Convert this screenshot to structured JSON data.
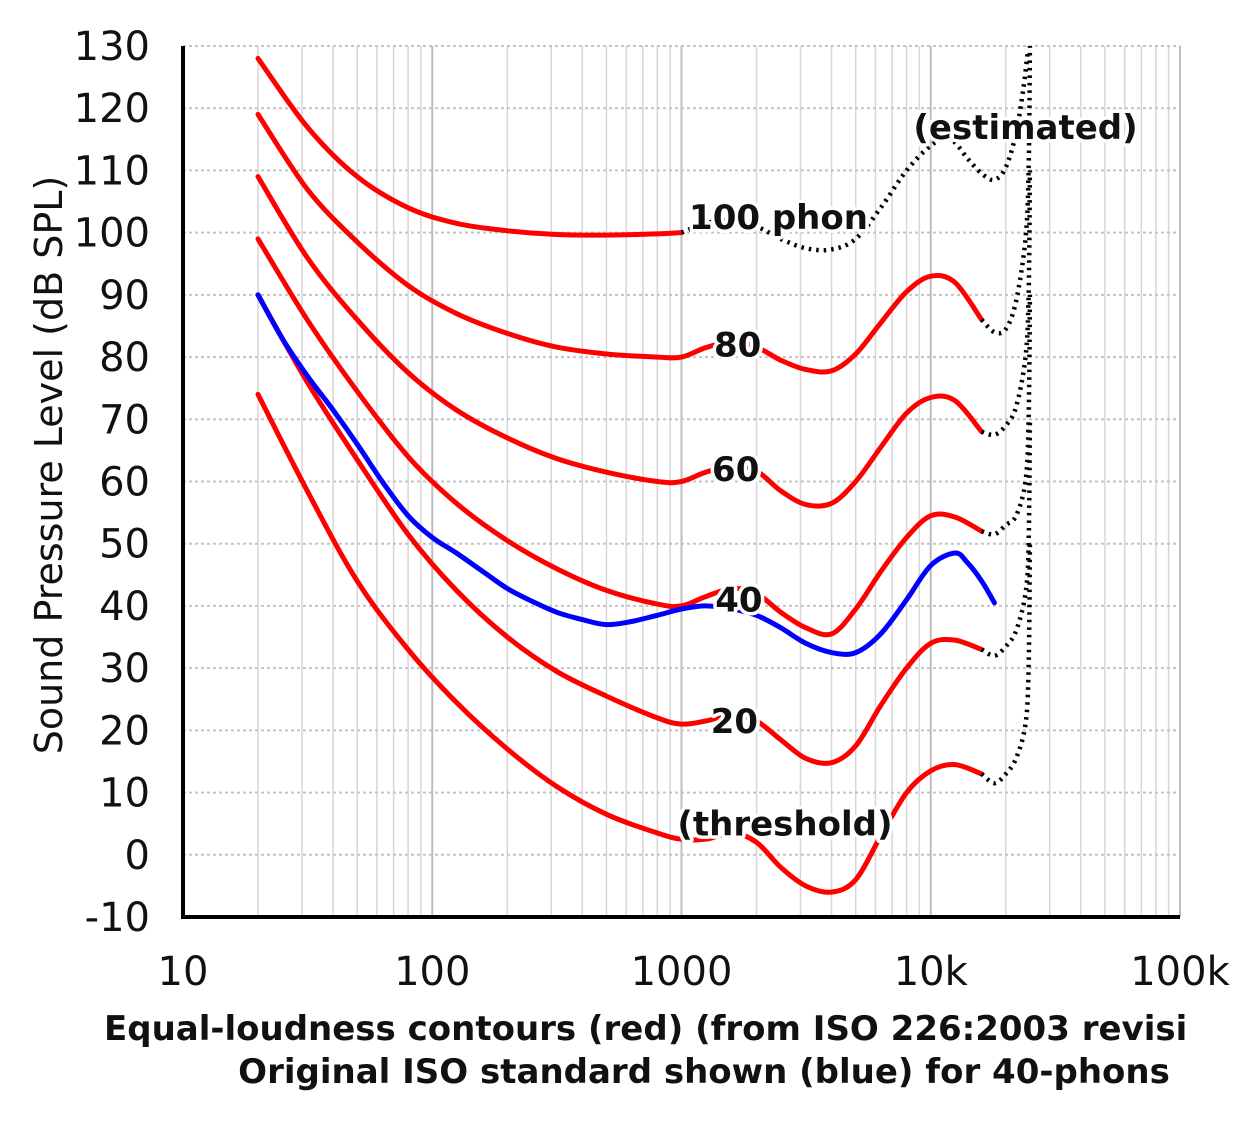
{
  "chart_data": {
    "type": "line",
    "x_scale": "log",
    "xlim": [
      10,
      100000
    ],
    "ylim": [
      -10,
      130
    ],
    "ylabel": "Sound Pressure Level (dB SPL)",
    "x_ticks": [
      {
        "value": 10,
        "label": "10"
      },
      {
        "value": 100,
        "label": "100"
      },
      {
        "value": 1000,
        "label": "1000"
      },
      {
        "value": 10000,
        "label": "10k"
      },
      {
        "value": 100000,
        "label": "100k"
      }
    ],
    "y_ticks": [
      {
        "value": 130,
        "label": "130"
      },
      {
        "value": 120,
        "label": "120"
      },
      {
        "value": 110,
        "label": "110"
      },
      {
        "value": 100,
        "label": "100"
      },
      {
        "value": 90,
        "label": "90"
      },
      {
        "value": 80,
        "label": "80"
      },
      {
        "value": 70,
        "label": "70"
      },
      {
        "value": 60,
        "label": "60"
      },
      {
        "value": 50,
        "label": "50"
      },
      {
        "value": 40,
        "label": "40"
      },
      {
        "value": 30,
        "label": "30"
      },
      {
        "value": 20,
        "label": "20"
      },
      {
        "value": 10,
        "label": "10"
      },
      {
        "value": 0,
        "label": "0"
      },
      {
        "value": -10,
        "label": "-10"
      }
    ],
    "grid": true,
    "caption": [
      "Equal-loudness contours (red) (from ISO 226:2003 revisi",
      "Original ISO standard shown (blue) for 40-phons"
    ],
    "series": [
      {
        "color": "#ff0000",
        "style": "solid",
        "points": [
          [
            20,
            128
          ],
          [
            31.5,
            117
          ],
          [
            50,
            109
          ],
          [
            80,
            104
          ],
          [
            125,
            101.5
          ],
          [
            200,
            100.3
          ],
          [
            315,
            99.7
          ],
          [
            500,
            99.6
          ],
          [
            800,
            99.8
          ],
          [
            1000,
            100
          ]
        ]
      },
      {
        "color": "#ff0000",
        "style": "solid",
        "points": [
          [
            20,
            119
          ],
          [
            31.5,
            107
          ],
          [
            50,
            98.5
          ],
          [
            80,
            91.5
          ],
          [
            125,
            87
          ],
          [
            200,
            83.8
          ],
          [
            315,
            81.6
          ],
          [
            500,
            80.5
          ],
          [
            800,
            80
          ],
          [
            1000,
            80
          ],
          [
            1250,
            81.5
          ],
          [
            1600,
            82.5
          ],
          [
            2000,
            81.6
          ],
          [
            2500,
            79.5
          ],
          [
            3150,
            78
          ],
          [
            4000,
            77.8
          ],
          [
            5000,
            80.5
          ],
          [
            6300,
            85.5
          ],
          [
            8000,
            90.5
          ],
          [
            10000,
            93
          ],
          [
            12500,
            92
          ],
          [
            16000,
            86
          ]
        ]
      },
      {
        "color": "#ff0000",
        "style": "solid",
        "points": [
          [
            20,
            109
          ],
          [
            31.5,
            96
          ],
          [
            50,
            86
          ],
          [
            80,
            77.5
          ],
          [
            125,
            71.5
          ],
          [
            200,
            67
          ],
          [
            315,
            63.7
          ],
          [
            500,
            61.5
          ],
          [
            800,
            60
          ],
          [
            1000,
            60
          ],
          [
            1250,
            61.5
          ],
          [
            1600,
            62.5
          ],
          [
            2000,
            61.7
          ],
          [
            2500,
            58.5
          ],
          [
            3150,
            56.3
          ],
          [
            4000,
            56.5
          ],
          [
            5000,
            60
          ],
          [
            6300,
            65.5
          ],
          [
            8000,
            71
          ],
          [
            10000,
            73.5
          ],
          [
            12500,
            73
          ],
          [
            16000,
            68
          ]
        ]
      },
      {
        "color": "#ff0000",
        "style": "solid",
        "points": [
          [
            20,
            99
          ],
          [
            31.5,
            86
          ],
          [
            50,
            74.5
          ],
          [
            80,
            64
          ],
          [
            125,
            56.5
          ],
          [
            200,
            50.5
          ],
          [
            315,
            46
          ],
          [
            500,
            42.5
          ],
          [
            800,
            40.3
          ],
          [
            1000,
            40
          ],
          [
            1250,
            41.5
          ],
          [
            1600,
            42.8
          ],
          [
            2000,
            42
          ],
          [
            2500,
            39
          ],
          [
            3150,
            36.5
          ],
          [
            4000,
            35.5
          ],
          [
            5000,
            39.5
          ],
          [
            6300,
            45.5
          ],
          [
            8000,
            51
          ],
          [
            10000,
            54.5
          ],
          [
            12500,
            54.3
          ],
          [
            16000,
            52
          ]
        ]
      },
      {
        "color": "#ff0000",
        "style": "solid",
        "points": [
          [
            20,
            90
          ],
          [
            31.5,
            76
          ],
          [
            50,
            63.5
          ],
          [
            80,
            51.5
          ],
          [
            125,
            42.5
          ],
          [
            200,
            35
          ],
          [
            315,
            29.5
          ],
          [
            500,
            25.5
          ],
          [
            800,
            22
          ],
          [
            1000,
            21
          ],
          [
            1250,
            21.5
          ],
          [
            1600,
            22.5
          ],
          [
            2000,
            21.5
          ],
          [
            2500,
            18.5
          ],
          [
            3150,
            15.5
          ],
          [
            4000,
            14.8
          ],
          [
            5000,
            17.5
          ],
          [
            6300,
            24
          ],
          [
            8000,
            30
          ],
          [
            10000,
            34
          ],
          [
            12500,
            34.5
          ],
          [
            16000,
            33
          ]
        ]
      },
      {
        "color": "#ff0000",
        "style": "solid",
        "points": [
          [
            20,
            74
          ],
          [
            31.5,
            58.5
          ],
          [
            50,
            44
          ],
          [
            80,
            33
          ],
          [
            125,
            24.5
          ],
          [
            200,
            17
          ],
          [
            315,
            11
          ],
          [
            500,
            6.5
          ],
          [
            800,
            3.5
          ],
          [
            1000,
            2.5
          ],
          [
            1250,
            2.5
          ],
          [
            1600,
            3.5
          ],
          [
            2000,
            2
          ],
          [
            2500,
            -2
          ],
          [
            3150,
            -5
          ],
          [
            4000,
            -6
          ],
          [
            5000,
            -4
          ],
          [
            6300,
            3
          ],
          [
            8000,
            10
          ],
          [
            10000,
            13.5
          ],
          [
            12500,
            14.5
          ],
          [
            16000,
            13
          ]
        ]
      },
      {
        "color": "#0000ff",
        "style": "solid",
        "points": [
          [
            20,
            90
          ],
          [
            25,
            83
          ],
          [
            31.5,
            77
          ],
          [
            40,
            71.5
          ],
          [
            50,
            66
          ],
          [
            63,
            60
          ],
          [
            80,
            54.5
          ],
          [
            100,
            51
          ],
          [
            125,
            48.5
          ],
          [
            160,
            45.5
          ],
          [
            200,
            42.8
          ],
          [
            250,
            40.8
          ],
          [
            315,
            39
          ],
          [
            400,
            37.8
          ],
          [
            500,
            37
          ],
          [
            630,
            37.5
          ],
          [
            800,
            38.5
          ],
          [
            1000,
            39.5
          ],
          [
            1250,
            40
          ],
          [
            1600,
            39.5
          ],
          [
            2000,
            38.5
          ],
          [
            2500,
            36.5
          ],
          [
            3150,
            34
          ],
          [
            4000,
            32.5
          ],
          [
            5000,
            32.5
          ],
          [
            6300,
            35.5
          ],
          [
            8000,
            41
          ],
          [
            10000,
            46.5
          ],
          [
            12500,
            48.5
          ],
          [
            14000,
            47
          ],
          [
            16000,
            44
          ],
          [
            18000,
            40.5
          ]
        ]
      },
      {
        "color": "#000000",
        "style": "dotted",
        "points": [
          [
            1000,
            100
          ],
          [
            1250,
            101.5
          ],
          [
            1600,
            102
          ],
          [
            2000,
            101
          ],
          [
            2500,
            99
          ],
          [
            3150,
            97.5
          ],
          [
            4000,
            97.3
          ],
          [
            5000,
            99
          ],
          [
            6300,
            104
          ],
          [
            8000,
            110
          ],
          [
            10000,
            114
          ],
          [
            11500,
            115
          ],
          [
            12500,
            114.5
          ],
          [
            14000,
            112
          ],
          [
            16000,
            109.5
          ],
          [
            18000,
            108.5
          ],
          [
            20000,
            110.5
          ],
          [
            22000,
            116
          ],
          [
            23500,
            123
          ],
          [
            24500,
            129
          ]
        ]
      },
      {
        "color": "#000000",
        "style": "dotted",
        "points": [
          [
            16000,
            86
          ],
          [
            18000,
            84
          ],
          [
            20000,
            84.5
          ],
          [
            22000,
            89
          ],
          [
            24000,
            99
          ],
          [
            24700,
            110
          ],
          [
            25000,
            130
          ]
        ]
      },
      {
        "color": "#000000",
        "style": "dotted",
        "points": [
          [
            16000,
            68
          ],
          [
            18000,
            67.5
          ],
          [
            20000,
            69
          ],
          [
            22000,
            72
          ],
          [
            24000,
            80
          ],
          [
            24700,
            90
          ],
          [
            25000,
            110
          ]
        ]
      },
      {
        "color": "#000000",
        "style": "dotted",
        "points": [
          [
            16000,
            52
          ],
          [
            18000,
            51.5
          ],
          [
            20000,
            53
          ],
          [
            22000,
            54.5
          ],
          [
            24000,
            60
          ],
          [
            24700,
            70
          ],
          [
            25000,
            90
          ]
        ]
      },
      {
        "color": "#000000",
        "style": "dotted",
        "points": [
          [
            16000,
            33
          ],
          [
            18000,
            32
          ],
          [
            20000,
            33.5
          ],
          [
            22000,
            36
          ],
          [
            24000,
            42
          ],
          [
            24700,
            50
          ],
          [
            25000,
            70
          ]
        ]
      },
      {
        "color": "#000000",
        "style": "dotted",
        "points": [
          [
            16000,
            13
          ],
          [
            18000,
            11.5
          ],
          [
            20000,
            13
          ],
          [
            22000,
            15.5
          ],
          [
            24000,
            21
          ],
          [
            24700,
            30
          ],
          [
            25000,
            50
          ]
        ]
      }
    ],
    "annotations": [
      {
        "text": "(estimated)",
        "x": 24000,
        "y": 117
      },
      {
        "text": "100 phon",
        "x": 2450,
        "y": 102.5
      },
      {
        "text": "80",
        "x": 1680,
        "y": 82
      },
      {
        "text": "60",
        "x": 1650,
        "y": 62
      },
      {
        "text": "40",
        "x": 1700,
        "y": 41
      },
      {
        "text": "20",
        "x": 1630,
        "y": 21.5
      },
      {
        "text": "(threshold)",
        "x": 2600,
        "y": 5
      }
    ]
  }
}
